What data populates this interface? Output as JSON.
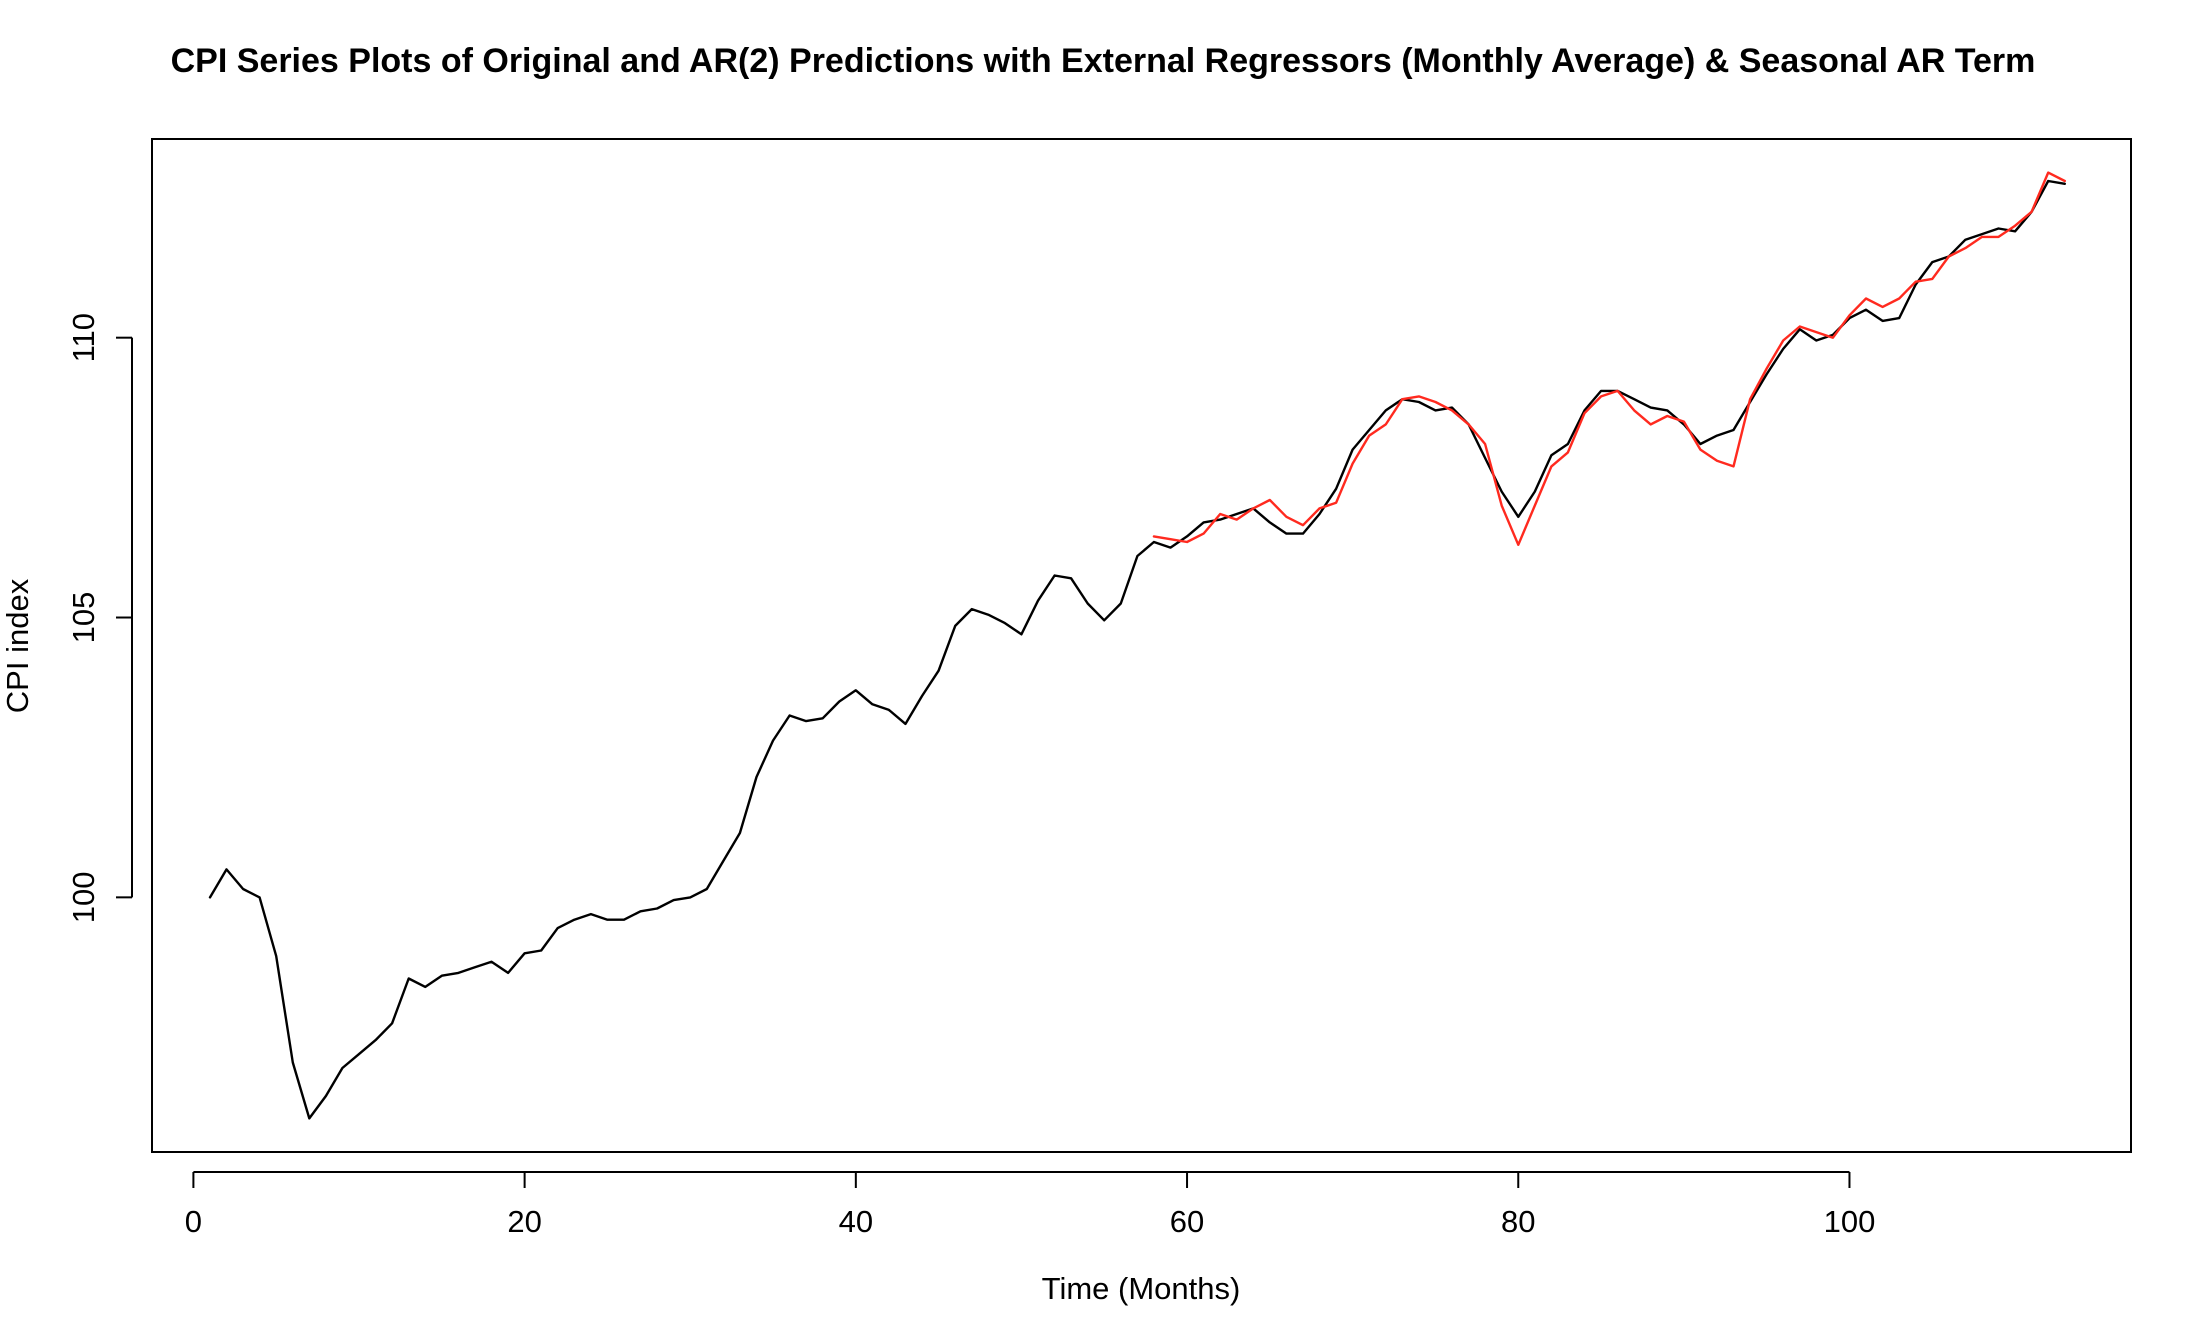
{
  "chart_data": {
    "type": "line",
    "title": "CPI Series Plots of Original and AR(2) Predictions with External Regressors (Monthly Average) & Seasonal AR Term",
    "xlabel": "Time (Months)",
    "ylabel": "CPI index",
    "xlim": [
      -2.5,
      117.0
    ],
    "ylim": [
      95.45,
      113.55
    ],
    "x_ticks": [
      0,
      20,
      40,
      60,
      80,
      100
    ],
    "y_ticks": [
      100,
      105,
      110
    ],
    "x_tick_labels": [
      "0",
      "20",
      "40",
      "60",
      "80",
      "100"
    ],
    "y_tick_labels": [
      "100",
      "105",
      "110"
    ],
    "grid": false,
    "legend": "none",
    "series": [
      {
        "color": "#000000",
        "x": [
          1,
          2,
          3,
          4,
          5,
          6,
          7,
          8,
          9,
          10,
          11,
          12,
          13,
          14,
          15,
          16,
          17,
          18,
          19,
          20,
          21,
          22,
          23,
          24,
          25,
          26,
          27,
          28,
          29,
          30,
          31,
          32,
          33,
          34,
          35,
          36,
          37,
          38,
          39,
          40,
          41,
          42,
          43,
          44,
          45,
          46,
          47,
          48,
          49,
          50,
          51,
          52,
          53,
          54,
          55,
          56,
          57,
          58,
          59,
          60,
          61,
          62,
          63,
          64,
          65,
          66,
          67,
          68,
          69,
          70,
          71,
          72,
          73,
          74,
          75,
          76,
          77,
          78,
          79,
          80,
          81,
          82,
          83,
          84,
          85,
          86,
          87,
          88,
          89,
          90,
          91,
          92,
          93,
          94,
          95,
          96,
          97,
          98,
          99,
          100,
          101,
          102,
          103,
          104,
          105,
          106,
          107,
          108,
          109,
          110,
          111,
          112,
          113
        ],
        "values": [
          100.0,
          100.5,
          100.15,
          100.0,
          98.95,
          97.05,
          96.05,
          96.45,
          96.95,
          97.2,
          97.45,
          97.75,
          98.55,
          98.4,
          98.6,
          98.65,
          98.75,
          98.85,
          98.65,
          99.0,
          99.05,
          99.45,
          99.6,
          99.7,
          99.6,
          99.6,
          99.75,
          99.8,
          99.95,
          100.0,
          100.15,
          100.65,
          101.15,
          102.15,
          102.8,
          103.25,
          103.15,
          103.2,
          103.5,
          103.7,
          103.45,
          103.35,
          103.1,
          103.6,
          104.05,
          104.85,
          105.15,
          105.05,
          104.9,
          104.7,
          105.3,
          105.75,
          105.7,
          105.25,
          104.95,
          105.25,
          106.1,
          106.35,
          106.25,
          106.45,
          106.7,
          106.75,
          106.85,
          106.95,
          106.7,
          106.5,
          106.5,
          106.85,
          107.3,
          108.0,
          108.35,
          108.7,
          108.9,
          108.85,
          108.7,
          108.75,
          108.45,
          107.85,
          107.25,
          106.8,
          107.25,
          107.9,
          108.1,
          108.7,
          109.05,
          109.05,
          108.9,
          108.75,
          108.7,
          108.45,
          108.1,
          108.25,
          108.35,
          108.85,
          109.35,
          109.8,
          110.15,
          109.95,
          110.05,
          110.35,
          110.5,
          110.3,
          110.35,
          110.95,
          111.35,
          111.45,
          111.75,
          111.85,
          111.95,
          111.9,
          112.25,
          112.8,
          112.75
        ]
      },
      {
        "color": "#ff2a1f",
        "x": [
          58,
          59,
          60,
          61,
          62,
          63,
          64,
          65,
          66,
          67,
          68,
          69,
          70,
          71,
          72,
          73,
          74,
          75,
          76,
          77,
          78,
          79,
          80,
          81,
          82,
          83,
          84,
          85,
          86,
          87,
          88,
          89,
          90,
          91,
          92,
          93,
          94,
          95,
          96,
          97,
          98,
          99,
          100,
          101,
          102,
          103,
          104,
          105,
          106,
          107,
          108,
          109,
          110,
          111,
          112,
          113
        ],
        "values": [
          106.45,
          106.4,
          106.35,
          106.5,
          106.85,
          106.75,
          106.95,
          107.1,
          106.8,
          106.65,
          106.95,
          107.05,
          107.75,
          108.25,
          108.45,
          108.9,
          108.95,
          108.85,
          108.7,
          108.45,
          108.1,
          107.0,
          106.3,
          107.0,
          107.7,
          107.95,
          108.65,
          108.95,
          109.05,
          108.7,
          108.45,
          108.6,
          108.5,
          108.0,
          107.8,
          107.7,
          108.9,
          109.45,
          109.95,
          110.2,
          110.1,
          110.0,
          110.4,
          110.7,
          110.55,
          110.7,
          111.0,
          111.05,
          111.45,
          111.6,
          111.8,
          111.8,
          112.0,
          112.25,
          112.95,
          112.8
        ]
      }
    ]
  }
}
